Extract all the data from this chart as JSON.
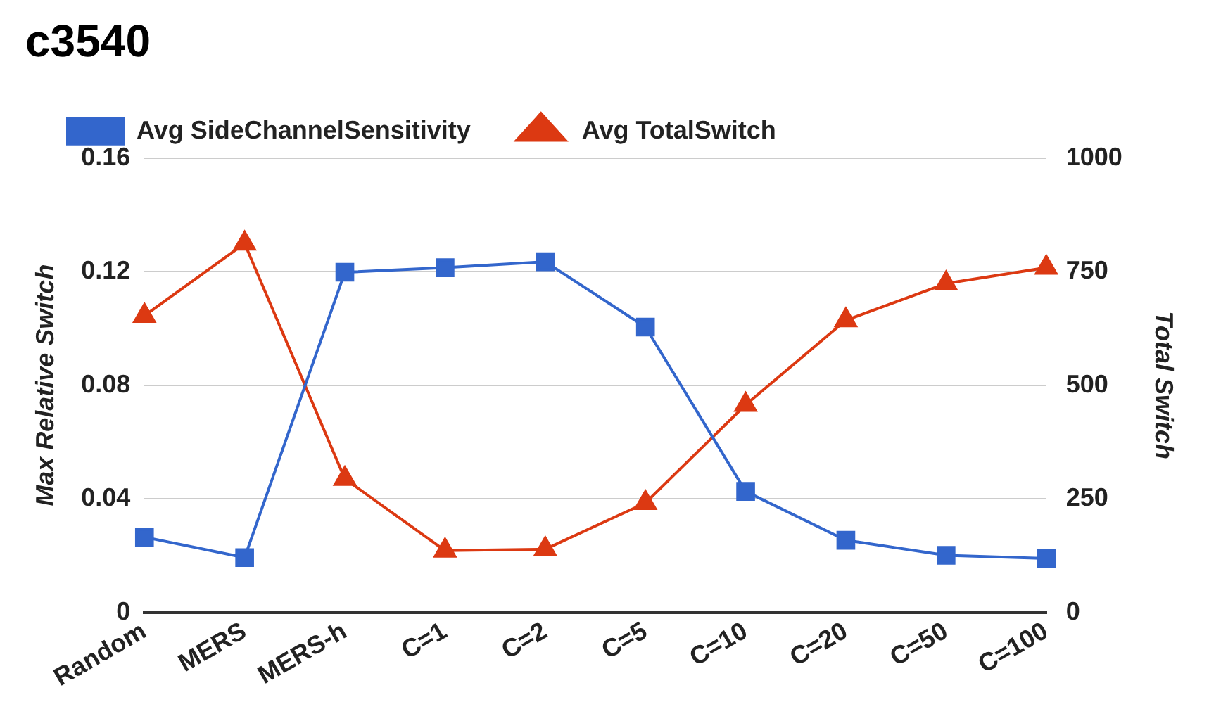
{
  "chart_data": {
    "type": "line",
    "title": "c3540",
    "ylabel": "Max Relative Switch",
    "y2label": "Total Switch",
    "categories": [
      "Random",
      "MERS",
      "MERS-h",
      "C=1",
      "C=2",
      "C=5",
      "C=10",
      "C=20",
      "C=50",
      "C=100"
    ],
    "series": [
      {
        "name": "Avg SideChannelSensitivity",
        "color": "#3366cc",
        "marker": "square",
        "values": [
          0.0265,
          0.0193,
          0.1198,
          0.1214,
          0.1235,
          0.1005,
          0.0426,
          0.0254,
          0.0201,
          0.019
        ]
      },
      {
        "name": "Avg TotalSwitch",
        "color": "#dc3912",
        "marker": "triangle",
        "axis": "y2",
        "values": [
          653,
          812,
          294,
          136,
          139,
          241,
          457,
          643,
          724,
          759
        ]
      }
    ],
    "ylim": [
      0,
      0.16
    ],
    "yticks": [
      0,
      0.04,
      0.08,
      0.12,
      0.16
    ],
    "y2lim": [
      0,
      1000
    ],
    "y2ticks": [
      0,
      250,
      500,
      750,
      1000
    ],
    "grid": "y",
    "legend": "top left"
  }
}
